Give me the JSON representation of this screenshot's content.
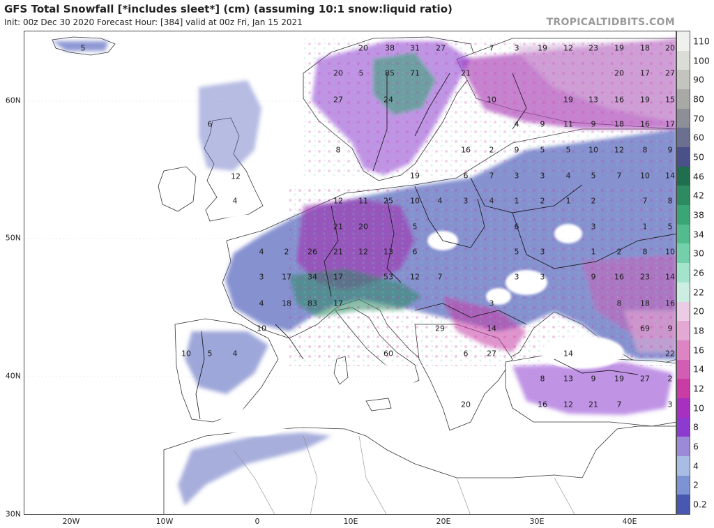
{
  "header": {
    "title": "GFS Total Snowfall [*includes sleet*] (cm) (assuming 10:1 snow:liquid ratio)",
    "subtitle": "Init: 00z Dec 30 2020   Forecast Hour: [384]   valid at 00z Fri, Jan 15 2021",
    "credit": "TROPICALTIDBITS.COM"
  },
  "axes": {
    "lat_labels": [
      "60N",
      "50N",
      "40N",
      "30N"
    ],
    "lon_labels": [
      "20W",
      "10W",
      "0",
      "10E",
      "20E",
      "30E",
      "40E"
    ]
  },
  "colorbar": {
    "labels": [
      "110",
      "100",
      "90",
      "80",
      "70",
      "60",
      "50",
      "46",
      "42",
      "38",
      "34",
      "30",
      "26",
      "22",
      "20",
      "18",
      "16",
      "14",
      "12",
      "10",
      "8",
      "6",
      "4",
      "2",
      "0.2"
    ],
    "colors": [
      "#f0f0ec",
      "#dcdcd6",
      "#c4c4be",
      "#a8a8a4",
      "#8c8e98",
      "#6c7090",
      "#4a5088",
      "#1f6e4e",
      "#2e8a60",
      "#3aa676",
      "#52bc8e",
      "#74d0aa",
      "#a4e4cc",
      "#cceee2",
      "#eccce4",
      "#e4a8d4",
      "#dc84c4",
      "#d25eb4",
      "#c83ca4",
      "#a830c0",
      "#8c3ad0",
      "#9c8ad8",
      "#a8bce4",
      "#7c94d4",
      "#4858b0"
    ]
  },
  "map_labels": [
    {
      "name": "label-5-iceland",
      "text": "5"
    },
    {
      "name": "label-20-norway1",
      "text": "20"
    },
    {
      "name": "label-38-norway2",
      "text": "38"
    },
    {
      "name": "label-31-sweden",
      "text": "31"
    },
    {
      "name": "label-27-finland",
      "text": "27"
    },
    {
      "name": "label-85-sweden",
      "text": "85"
    },
    {
      "name": "label-71-sweden",
      "text": "71"
    },
    {
      "name": "label-20-norway3",
      "text": "20"
    },
    {
      "name": "label-5-norway",
      "text": "5"
    },
    {
      "name": "label-27-norway",
      "text": "27"
    },
    {
      "name": "label-24-sweden",
      "text": "24"
    },
    {
      "name": "label-6-scotland",
      "text": "6"
    },
    {
      "name": "label-12-britain",
      "text": "12"
    },
    {
      "name": "label-4-england",
      "text": "4"
    },
    {
      "name": "label-8-sweden-south",
      "text": "8"
    },
    {
      "name": "label-12-germany-north",
      "text": "12"
    },
    {
      "name": "label-11-germany",
      "text": "11"
    },
    {
      "name": "label-25-germany",
      "text": "25"
    },
    {
      "name": "label-10-poland",
      "text": "10"
    },
    {
      "name": "label-4-poland",
      "text": "4"
    },
    {
      "name": "label-3-poland",
      "text": "3"
    },
    {
      "name": "label-21-germany",
      "text": "21"
    },
    {
      "name": "label-20-czech",
      "text": "20"
    },
    {
      "name": "label-5-czech",
      "text": "5"
    },
    {
      "name": "label-4-france-north",
      "text": "4"
    },
    {
      "name": "label-2-france",
      "text": "2"
    },
    {
      "name": "label-26-france",
      "text": "26"
    },
    {
      "name": "label-21-germany-south",
      "text": "21"
    },
    {
      "name": "label-12-austria",
      "text": "12"
    },
    {
      "name": "label-13-austria",
      "text": "13"
    },
    {
      "name": "label-6-hungary",
      "text": "6"
    },
    {
      "name": "label-3-france",
      "text": "3"
    },
    {
      "name": "label-17-france",
      "text": "17"
    },
    {
      "name": "label-34-alps",
      "text": "34"
    },
    {
      "name": "label-17-alps",
      "text": "17"
    },
    {
      "name": "label-53-alps",
      "text": "53"
    },
    {
      "name": "label-12-slovenia",
      "text": "12"
    },
    {
      "name": "label-7-croatia",
      "text": "7"
    },
    {
      "name": "label-4-france-south",
      "text": "4"
    },
    {
      "name": "label-18-massif",
      "text": "18"
    },
    {
      "name": "label-83-alps",
      "text": "83"
    },
    {
      "name": "label-17-italy",
      "text": "17"
    },
    {
      "name": "label-3-balkans",
      "text": "3"
    },
    {
      "name": "label-10-spain",
      "text": "10"
    },
    {
      "name": "label-10-portugal",
      "text": "10"
    },
    {
      "name": "label-5-spain",
      "text": "5"
    },
    {
      "name": "label-4-spain",
      "text": "4"
    },
    {
      "name": "label-29-balkans",
      "text": "29"
    },
    {
      "name": "label-14-bulgaria",
      "text": "14"
    },
    {
      "name": "label-60-italy",
      "text": "60"
    },
    {
      "name": "label-6-albania",
      "text": "6"
    },
    {
      "name": "label-27-greece",
      "text": "27"
    },
    {
      "name": "label-20-greece",
      "text": "20"
    },
    {
      "name": "label-7-russia1",
      "text": "7"
    },
    {
      "name": "label-3-russia2",
      "text": "3"
    },
    {
      "name": "label-19-russia3",
      "text": "19"
    },
    {
      "name": "label-12-russia4",
      "text": "12"
    },
    {
      "name": "label-23-russia5",
      "text": "23"
    },
    {
      "name": "label-19-russia6",
      "text": "19"
    },
    {
      "name": "label-18-russia7",
      "text": "18"
    },
    {
      "name": "label-20-russia8",
      "text": "20"
    },
    {
      "name": "label-21-finland",
      "text": "21"
    },
    {
      "name": "label-20-russia9",
      "text": "20"
    },
    {
      "name": "label-17-russia10",
      "text": "17"
    },
    {
      "name": "label-27-russia11",
      "text": "27"
    },
    {
      "name": "label-10-baltic",
      "text": "10"
    },
    {
      "name": "label-19-russia12",
      "text": "19"
    },
    {
      "name": "label-13-russia13",
      "text": "13"
    },
    {
      "name": "label-16-russia14",
      "text": "16"
    },
    {
      "name": "label-19-russia15",
      "text": "19"
    },
    {
      "name": "label-15-russia16",
      "text": "15"
    },
    {
      "name": "label-4-baltic2",
      "text": "4"
    },
    {
      "name": "label-9-russia17",
      "text": "9"
    },
    {
      "name": "label-11-russia18",
      "text": "11"
    },
    {
      "name": "label-9-russia19",
      "text": "9"
    },
    {
      "name": "label-18-russia20",
      "text": "18"
    },
    {
      "name": "label-16-russia21",
      "text": "16"
    },
    {
      "name": "label-17-russia22",
      "text": "17"
    },
    {
      "name": "label-16-baltic3",
      "text": "16"
    },
    {
      "name": "label-2-lithuania",
      "text": "2"
    },
    {
      "name": "label-9-latvia",
      "text": "9"
    },
    {
      "name": "label-5-belarus",
      "text": "5"
    },
    {
      "name": "label-5-russia23",
      "text": "5"
    },
    {
      "name": "label-10-russia24",
      "text": "10"
    },
    {
      "name": "label-12-russia25",
      "text": "12"
    },
    {
      "name": "label-8-russia26",
      "text": "8"
    },
    {
      "name": "label-9-russia27",
      "text": "9"
    },
    {
      "name": "label-19-poland-east",
      "text": "19"
    },
    {
      "name": "label-6-poland-e2",
      "text": "6"
    },
    {
      "name": "label-7-belarus2",
      "text": "7"
    },
    {
      "name": "label-3-belarus3",
      "text": "3"
    },
    {
      "name": "label-3-belarus4",
      "text": "3"
    },
    {
      "name": "label-4-russia28",
      "text": "4"
    },
    {
      "name": "label-5-russia29",
      "text": "5"
    },
    {
      "name": "label-7-russia30",
      "text": "7"
    },
    {
      "name": "label-10-russia31",
      "text": "10"
    },
    {
      "name": "label-14-russia32",
      "text": "14"
    },
    {
      "name": "label-4-ukraine1",
      "text": "4"
    },
    {
      "name": "label-1-ukraine2",
      "text": "1"
    },
    {
      "name": "label-2-ukraine3",
      "text": "2"
    },
    {
      "name": "label-1-ukraine4",
      "text": "1"
    },
    {
      "name": "label-2-ukraine5",
      "text": "2"
    },
    {
      "name": "label-7-russia33",
      "text": "7"
    },
    {
      "name": "label-8-russia34",
      "text": "8"
    },
    {
      "name": "label-6-ukraine6",
      "text": "6"
    },
    {
      "name": "label-3-ukraine7",
      "text": "3"
    },
    {
      "name": "label-1-ukraine8",
      "text": "1"
    },
    {
      "name": "label-5-russia35",
      "text": "5"
    },
    {
      "name": "label-5-romania",
      "text": "5"
    },
    {
      "name": "label-3-ukraine9",
      "text": "3"
    },
    {
      "name": "label-1-ukraine10",
      "text": "1"
    },
    {
      "name": "label-2-ukraine11",
      "text": "2"
    },
    {
      "name": "label-8-russia36",
      "text": "8"
    },
    {
      "name": "label-10-russia37",
      "text": "10"
    },
    {
      "name": "label-3-romania2",
      "text": "3"
    },
    {
      "name": "label-3-moldova",
      "text": "3"
    },
    {
      "name": "label-9-crimea",
      "text": "9"
    },
    {
      "name": "label-16-russia38",
      "text": "16"
    },
    {
      "name": "label-23-russia39",
      "text": "23"
    },
    {
      "name": "label-14-russia40",
      "text": "14"
    },
    {
      "name": "label-8-russia41",
      "text": "8"
    },
    {
      "name": "label-18-russia42",
      "text": "18"
    },
    {
      "name": "label-16-russia43",
      "text": "16"
    },
    {
      "name": "label-69-caucasus",
      "text": "69"
    },
    {
      "name": "label-9-caucasus2",
      "text": "9"
    },
    {
      "name": "label-22-georgia",
      "text": "22"
    },
    {
      "name": "label-14-turkey1",
      "text": "14"
    },
    {
      "name": "label-8-turkey2",
      "text": "8"
    },
    {
      "name": "label-13-turkey3",
      "text": "13"
    },
    {
      "name": "label-9-turkey4",
      "text": "9"
    },
    {
      "name": "label-19-turkey5",
      "text": "19"
    },
    {
      "name": "label-27-turkey6",
      "text": "27"
    },
    {
      "name": "label-2-turkey7",
      "text": "2"
    },
    {
      "name": "label-16-turkey8",
      "text": "16"
    },
    {
      "name": "label-12-turkey9",
      "text": "12"
    },
    {
      "name": "label-21-turkey10",
      "text": "21"
    },
    {
      "name": "label-7-turkey11",
      "text": "7"
    },
    {
      "name": "label-3-iran",
      "text": "3"
    }
  ]
}
